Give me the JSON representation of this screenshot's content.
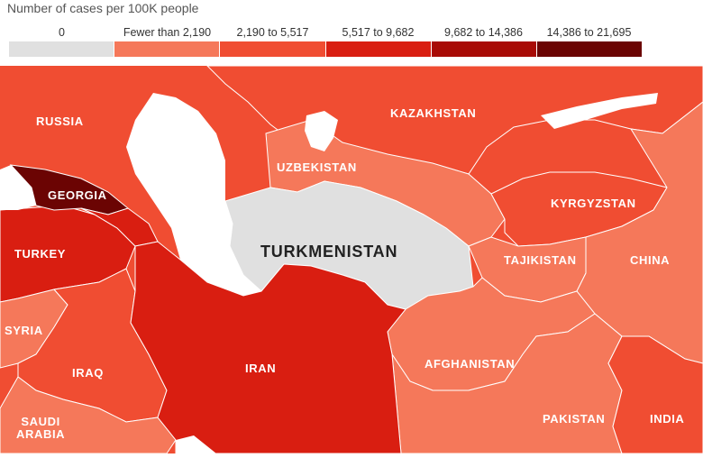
{
  "legend": {
    "title": "Number of cases per 100K people",
    "bins": [
      {
        "label": "0",
        "color": "#e0e0e0"
      },
      {
        "label": "Fewer than 2,190",
        "color": "#f5785a"
      },
      {
        "label": "2,190 to 5,517",
        "color": "#f04d32"
      },
      {
        "label": "5,517 to 9,682",
        "color": "#d91e11"
      },
      {
        "label": "9,682 to 14,386",
        "color": "#a80b06"
      },
      {
        "label": "14,386 to 21,695",
        "color": "#6b0403"
      }
    ]
  },
  "countries": [
    {
      "name": "RUSSIA",
      "bin": "2,190 to 5,517"
    },
    {
      "name": "KAZAKHSTAN",
      "bin": "2,190 to 5,517"
    },
    {
      "name": "GEORGIA",
      "bin": "14,386 to 21,695"
    },
    {
      "name": "UZBEKISTAN",
      "bin": "Fewer than 2,190"
    },
    {
      "name": "KYRGYZSTAN",
      "bin": "2,190 to 5,517"
    },
    {
      "name": "TURKEY",
      "bin": "5,517 to 9,682"
    },
    {
      "name": "TURKMENISTAN",
      "bin": "0"
    },
    {
      "name": "TAJIKISTAN",
      "bin": "Fewer than 2,190"
    },
    {
      "name": "CHINA",
      "bin": "Fewer than 2,190"
    },
    {
      "name": "SYRIA",
      "bin": "Fewer than 2,190"
    },
    {
      "name": "IRAQ",
      "bin": "2,190 to 5,517"
    },
    {
      "name": "IRAN",
      "bin": "5,517 to 9,682"
    },
    {
      "name": "AFGHANISTAN",
      "bin": "Fewer than 2,190"
    },
    {
      "name": "SAUDI\nARABIA",
      "bin": "Fewer than 2,190"
    },
    {
      "name": "PAKISTAN",
      "bin": "Fewer than 2,190"
    },
    {
      "name": "INDIA",
      "bin": "2,190 to 5,517"
    }
  ],
  "colors": {
    "water": "#ffffff",
    "borders": "#ffffff"
  }
}
